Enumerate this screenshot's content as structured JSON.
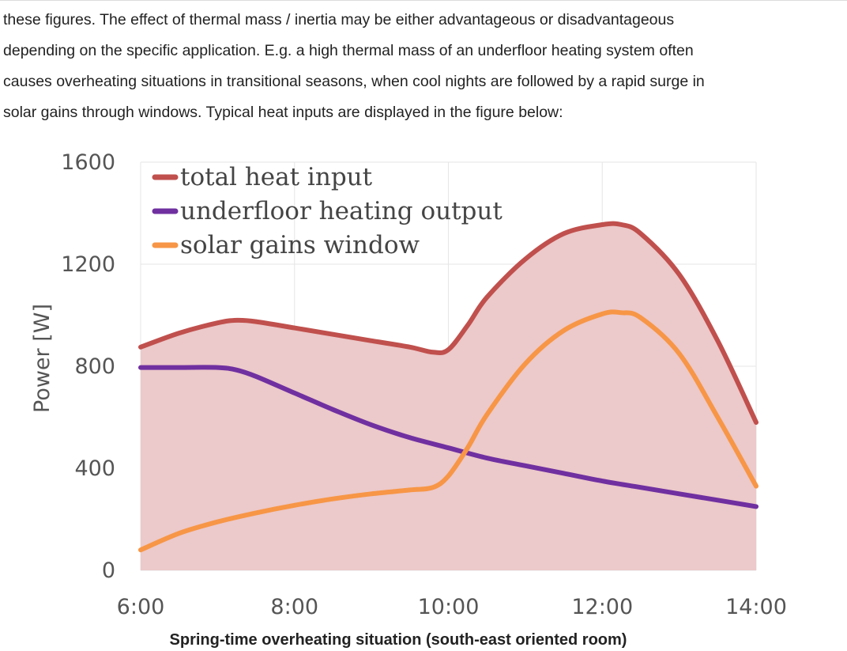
{
  "paragraph": {
    "lines": [
      "these figures. The effect of thermal mass / inertia may be either advantageous or disadvantageous",
      "depending on the specific application. E.g. a high thermal mass of an underfloor heating system often",
      "causes overheating situations in transitional seasons, when cool nights are followed by a rapid surge in",
      "solar gains through windows. Typical heat inputs are displayed in the figure below:"
    ]
  },
  "caption": "Spring-time overheating situation (south-east oriented room)",
  "chart_data": {
    "type": "line",
    "title": "",
    "ylabel": "Power [W]",
    "xlabel": "",
    "x_ticks": [
      "6:00",
      "8:00",
      "10:00",
      "12:00",
      "14:00"
    ],
    "y_ticks": [
      "0",
      "400",
      "800",
      "1200",
      "1600"
    ],
    "ylim": [
      0,
      1600
    ],
    "xlim_hours": [
      6,
      14
    ],
    "grid": true,
    "legend_position": "top-left",
    "fill_under": "total heat input",
    "fill_color": "#ecc9ca",
    "series": [
      {
        "name": "total heat input",
        "color": "#c0504d",
        "x": [
          6.0,
          6.5,
          7.0,
          7.25,
          7.5,
          8.0,
          8.5,
          9.0,
          9.5,
          9.8,
          10.0,
          10.25,
          10.5,
          11.0,
          11.5,
          12.0,
          12.25,
          12.5,
          13.0,
          13.5,
          14.0
        ],
        "y": [
          875,
          930,
          970,
          980,
          975,
          950,
          925,
          900,
          875,
          855,
          865,
          960,
          1070,
          1220,
          1320,
          1355,
          1355,
          1320,
          1160,
          900,
          580
        ]
      },
      {
        "name": "underfloor heating output",
        "color": "#7030a0",
        "x": [
          6.0,
          6.5,
          7.0,
          7.25,
          7.5,
          8.0,
          8.5,
          9.0,
          9.5,
          10.0,
          10.5,
          11.0,
          11.5,
          12.0,
          12.5,
          13.0,
          13.5,
          14.0
        ],
        "y": [
          795,
          795,
          795,
          785,
          760,
          695,
          630,
          570,
          520,
          480,
          440,
          410,
          380,
          350,
          325,
          300,
          275,
          250
        ]
      },
      {
        "name": "solar gains window",
        "color": "#f79646",
        "x": [
          6.0,
          6.5,
          7.0,
          7.5,
          8.0,
          8.5,
          9.0,
          9.5,
          9.8,
          10.0,
          10.25,
          10.5,
          11.0,
          11.5,
          12.0,
          12.25,
          12.5,
          13.0,
          13.5,
          14.0
        ],
        "y": [
          80,
          145,
          190,
          225,
          255,
          280,
          300,
          315,
          325,
          370,
          480,
          610,
          810,
          940,
          1005,
          1010,
          990,
          850,
          600,
          330
        ]
      }
    ]
  }
}
